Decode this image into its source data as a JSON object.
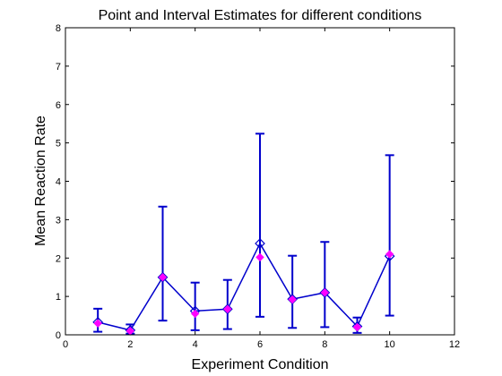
{
  "chart_data": {
    "type": "line",
    "title": "Point and Interval Estimates for different conditions",
    "xlabel": "Experiment Condition",
    "ylabel": "Mean Reaction Rate",
    "xlim": [
      0,
      12
    ],
    "ylim": [
      0,
      8
    ],
    "xticks": [
      "0",
      "2",
      "4",
      "6",
      "8",
      "10",
      "12"
    ],
    "yticks": [
      "0",
      "1",
      "2",
      "3",
      "4",
      "5",
      "6",
      "7",
      "8"
    ],
    "grid": false,
    "legend": "none",
    "series": [
      {
        "kind": "interval estimate (line with error bars)",
        "color": "#0000cc",
        "x": [
          1,
          2,
          3,
          4,
          5,
          6,
          7,
          8,
          9,
          10
        ],
        "y": [
          0.33,
          0.12,
          1.5,
          0.62,
          0.67,
          2.38,
          0.93,
          1.1,
          0.22,
          2.05
        ],
        "lower": [
          0.08,
          0.03,
          0.37,
          0.12,
          0.15,
          0.47,
          0.18,
          0.2,
          0.05,
          0.5
        ],
        "upper": [
          0.68,
          0.27,
          3.34,
          1.36,
          1.43,
          5.24,
          2.06,
          2.42,
          0.45,
          4.68
        ]
      },
      {
        "kind": "point estimate",
        "color": "#ff00ff",
        "x": [
          1,
          2,
          3,
          4,
          5,
          6,
          7,
          8,
          9,
          10
        ],
        "y": [
          0.3,
          0.1,
          1.5,
          0.55,
          0.67,
          2.02,
          0.92,
          1.1,
          0.2,
          2.1
        ]
      }
    ]
  }
}
